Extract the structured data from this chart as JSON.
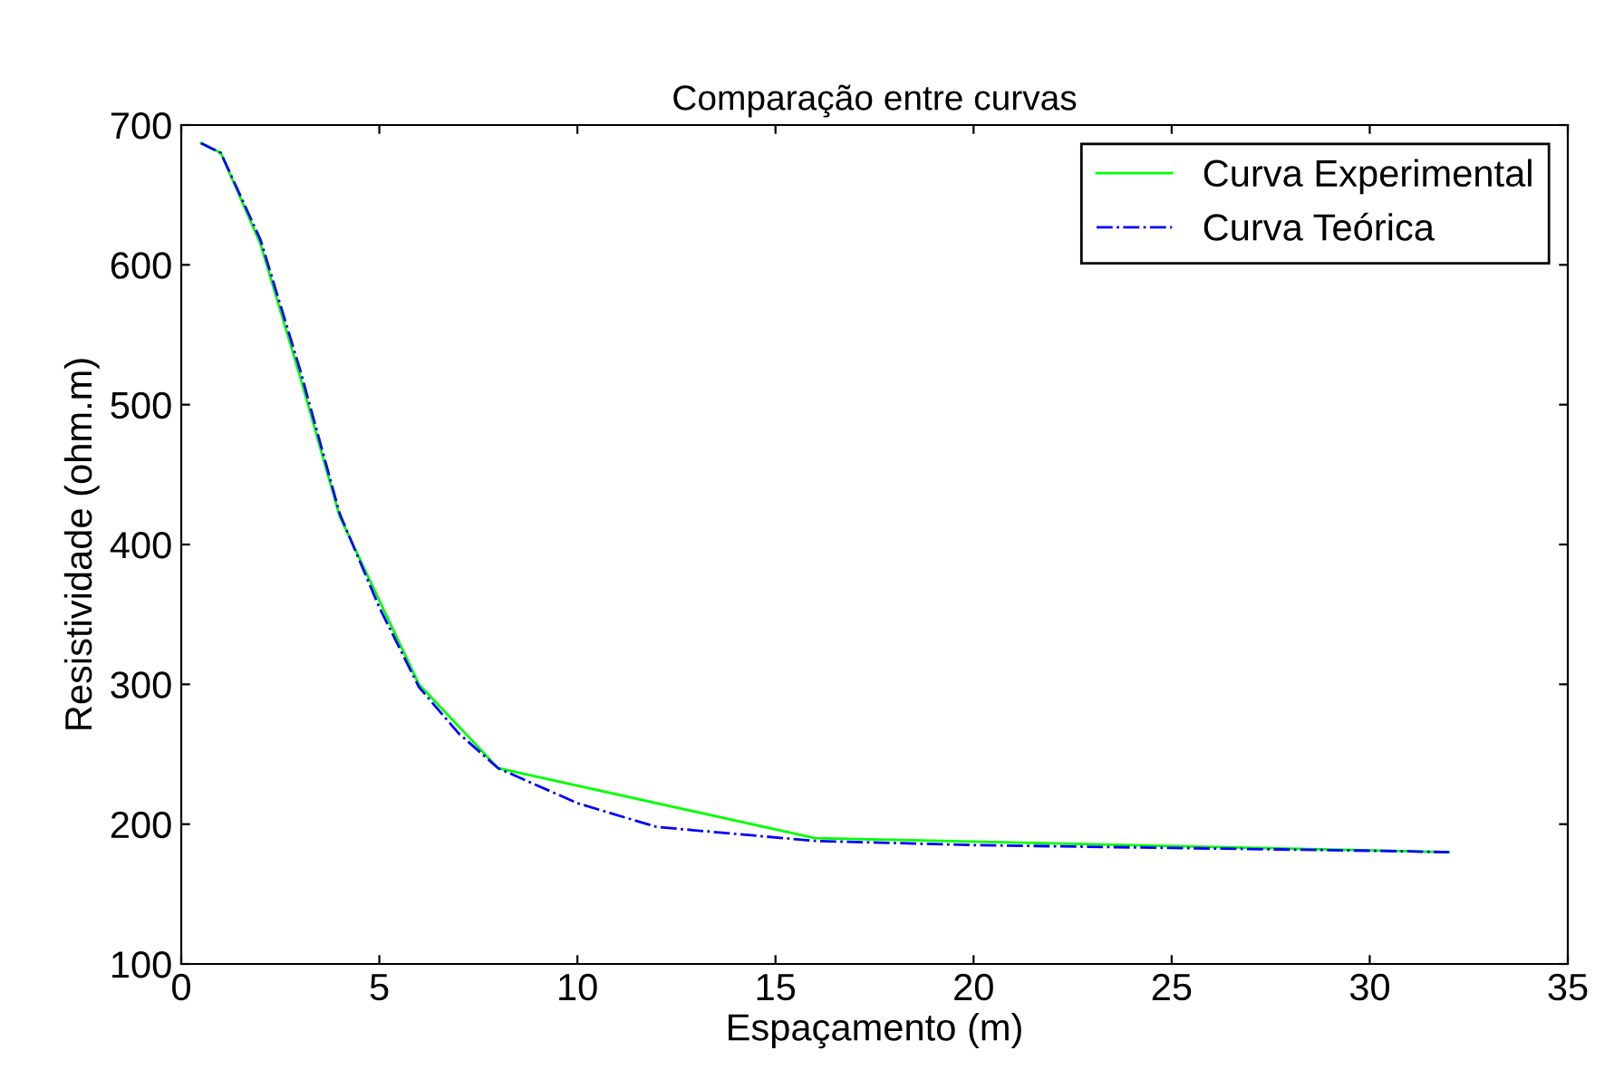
{
  "chart_data": {
    "type": "line",
    "title": "Comparação entre curvas",
    "xlabel": "Espaçamento (m)",
    "ylabel": "Resistividade (ohm.m)",
    "xlim": [
      0,
      35
    ],
    "ylim": [
      100,
      700
    ],
    "xticks": [
      0,
      5,
      10,
      15,
      20,
      25,
      30,
      35
    ],
    "yticks": [
      100,
      200,
      300,
      400,
      500,
      600,
      700
    ],
    "grid": false,
    "legend": "top right",
    "series": [
      {
        "name": "Curva Experimental",
        "color": "#00ff00",
        "line_style": "solid",
        "x": [
          0.5,
          1,
          2,
          3,
          4,
          6,
          8,
          16,
          32
        ],
        "values": [
          687,
          680,
          615,
          520,
          420,
          300,
          240,
          190,
          180
        ]
      },
      {
        "name": "Curva Teórica",
        "color": "#0000ff",
        "line_style": "dashdot",
        "x": [
          0.5,
          1,
          2,
          3,
          4,
          5,
          6,
          7,
          8,
          10,
          12,
          14,
          16,
          20,
          25,
          30,
          32
        ],
        "values": [
          687,
          680,
          618,
          525,
          422,
          355,
          298,
          265,
          240,
          215,
          198,
          193,
          188,
          185,
          183,
          181,
          180
        ]
      }
    ]
  }
}
